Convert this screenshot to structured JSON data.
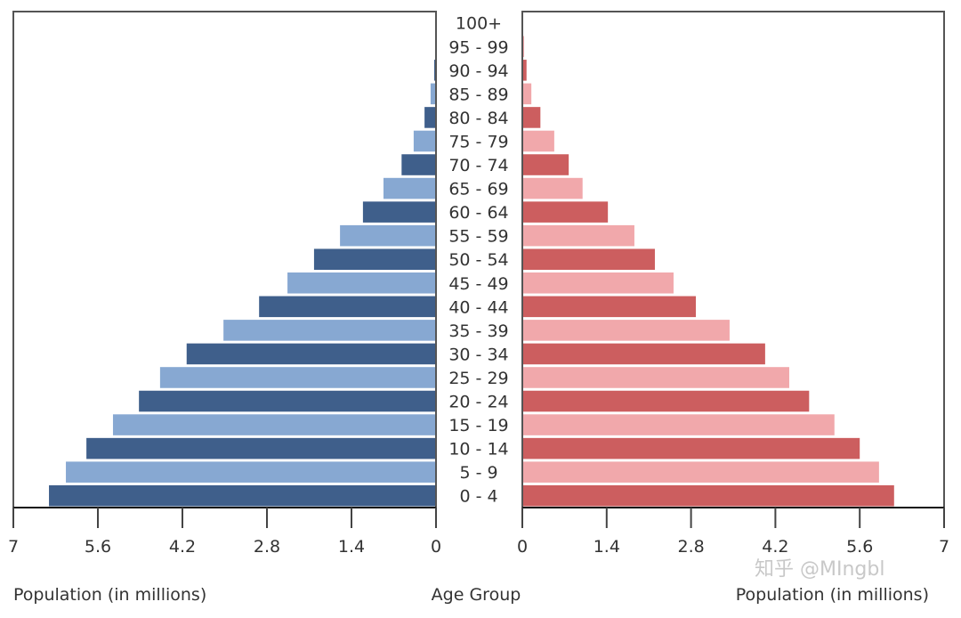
{
  "chart_data": {
    "type": "bar",
    "orientation": "horizontal-pyramid",
    "categories": [
      "0 - 4",
      "5 - 9",
      "10 - 14",
      "15 - 19",
      "20 - 24",
      "25 - 29",
      "30 - 34",
      "35 - 39",
      "40 - 44",
      "45 - 49",
      "50 - 54",
      "55 - 59",
      "60 - 64",
      "65 - 69",
      "70 - 74",
      "75 - 79",
      "80 - 84",
      "85 - 89",
      "90 - 94",
      "95 - 99",
      "100+"
    ],
    "series": [
      {
        "side": "left",
        "colors": [
          "#3f5f8b",
          "#87a8d2"
        ],
        "values": [
          6.41,
          6.13,
          5.79,
          5.35,
          4.92,
          4.57,
          4.13,
          3.52,
          2.93,
          2.46,
          2.02,
          1.59,
          1.21,
          0.87,
          0.57,
          0.37,
          0.19,
          0.09,
          0.03,
          0.01,
          0.005
        ]
      },
      {
        "side": "right",
        "colors": [
          "#cc5e5f",
          "#f1a8ab"
        ],
        "values": [
          6.17,
          5.92,
          5.6,
          5.18,
          4.76,
          4.43,
          4.03,
          3.44,
          2.88,
          2.51,
          2.2,
          1.86,
          1.42,
          1.0,
          0.77,
          0.53,
          0.3,
          0.15,
          0.07,
          0.03,
          0.01
        ]
      }
    ],
    "xlim": [
      0,
      7
    ],
    "left_ticks": [
      "7",
      "5.6",
      "4.2",
      "2.8",
      "1.4",
      "0"
    ],
    "right_ticks": [
      "0",
      "1.4",
      "2.8",
      "4.2",
      "5.6",
      "7"
    ],
    "left_xlabel": "Population (in millions)",
    "center_label": "Age Group",
    "right_xlabel": "Population (in millions)",
    "grid": false
  },
  "watermark": "知乎 @MIngbl"
}
